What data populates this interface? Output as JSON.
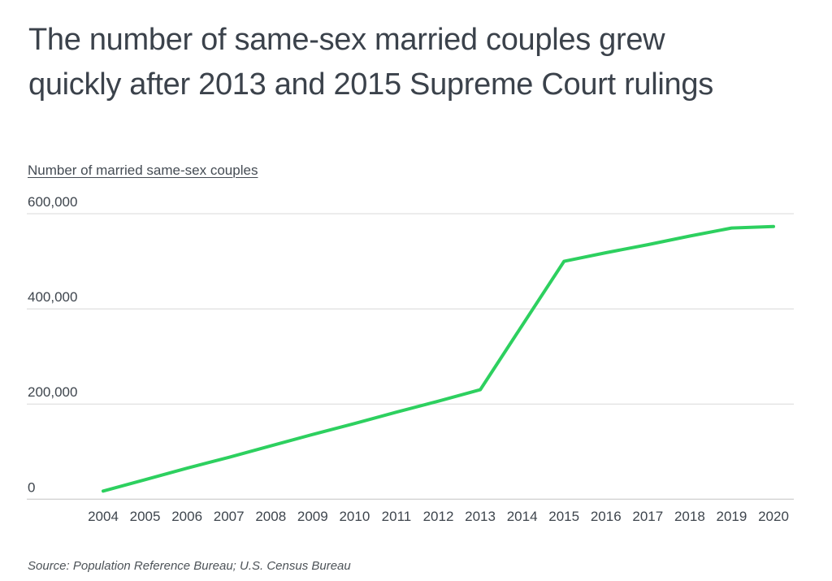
{
  "header": {
    "title": "The number of same-sex married couples grew quickly after 2013 and 2015 Supreme Court rulings"
  },
  "chart_data": {
    "type": "line",
    "title": "The number of same-sex married couples grew quickly after 2013 and 2015 Supreme Court rulings",
    "xlabel": "",
    "ylabel": "Number of married same-sex couples",
    "categories": [
      "2004",
      "2005",
      "2006",
      "2007",
      "2008",
      "2009",
      "2010",
      "2011",
      "2012",
      "2013",
      "2014",
      "2015",
      "2016",
      "2017",
      "2018",
      "2019",
      "2020"
    ],
    "series": [
      {
        "name": "Number of married same-sex couples",
        "values": [
          17000,
          41000,
          65000,
          88000,
          112000,
          136000,
          159000,
          183000,
          206000,
          230000,
          365000,
          500000,
          518000,
          535000,
          553000,
          570000,
          573000
        ]
      }
    ],
    "yticks": [
      0,
      200000,
      400000,
      600000
    ],
    "ytick_labels": [
      "0",
      "200,000",
      "400,000",
      "600,000"
    ],
    "ylim": [
      0,
      640000
    ],
    "grid": "horizontal",
    "legend": "none",
    "annotations": []
  },
  "source": {
    "text": "Source:  Population Reference Bureau; U.S. Census Bureau"
  },
  "colors": {
    "line": "#2dd05f",
    "gridline": "#d8d8d8",
    "baseline": "#c3c3c3",
    "title_text": "#3b424b",
    "tick_text": "#3e454d",
    "background": "#ffffff"
  }
}
